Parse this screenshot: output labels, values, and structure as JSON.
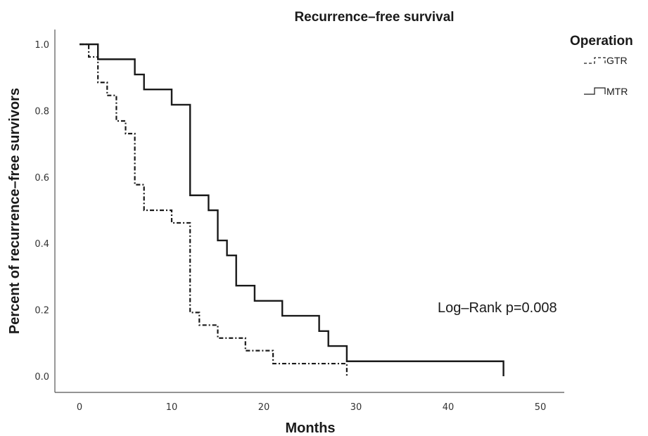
{
  "chart_data": {
    "type": "line",
    "title": "Recurrence–free survival",
    "xlabel": "Months",
    "ylabel": "Percent of recurrence–free survivors",
    "xlim": [
      0,
      50
    ],
    "ylim": [
      0,
      1.0
    ],
    "x_ticks": [
      "0",
      "10",
      "20",
      "30",
      "40",
      "50"
    ],
    "y_ticks": [
      "0.0",
      "0.2",
      "0.4",
      "0.6",
      "0.8",
      "1.0"
    ],
    "grid": false,
    "legend": {
      "title": "Operation",
      "position": "top-right"
    },
    "annotation": "Log–Rank p=0.008",
    "series": [
      {
        "name": "GTR",
        "style": "dashed",
        "color": "#1a1a1a",
        "x": [
          0,
          1,
          2,
          3,
          4,
          5,
          6,
          7,
          10,
          12,
          13,
          15,
          18,
          21,
          29
        ],
        "y": [
          1.0,
          0.962,
          0.885,
          0.846,
          0.769,
          0.731,
          0.577,
          0.5,
          0.462,
          0.192,
          0.154,
          0.115,
          0.077,
          0.038,
          0.0
        ]
      },
      {
        "name": "MTR",
        "style": "solid",
        "color": "#1a1a1a",
        "x": [
          0,
          2,
          6,
          7,
          10,
          12,
          14,
          15,
          16,
          17,
          19,
          22,
          26,
          27,
          29,
          46
        ],
        "y": [
          1.0,
          0.955,
          0.909,
          0.864,
          0.818,
          0.545,
          0.5,
          0.409,
          0.364,
          0.273,
          0.227,
          0.182,
          0.136,
          0.091,
          0.045,
          0.0
        ]
      }
    ]
  }
}
